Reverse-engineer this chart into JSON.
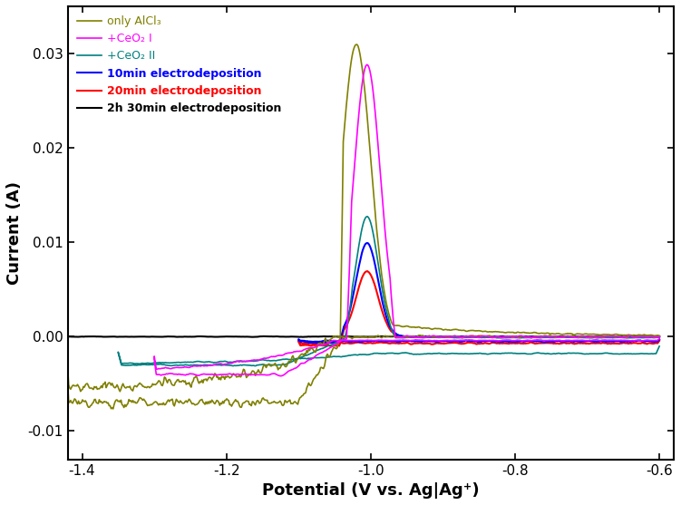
{
  "title": "",
  "xlabel": "Potential (V vs. Ag|Ag⁺)",
  "ylabel": "Current (A)",
  "xlim": [
    -1.42,
    -0.58
  ],
  "ylim": [
    -0.013,
    0.035
  ],
  "xticks": [
    -1.4,
    -1.2,
    -1.0,
    -0.8,
    -0.6
  ],
  "yticks": [
    -0.01,
    0.0,
    0.01,
    0.02,
    0.03
  ],
  "background_color": "#ffffff",
  "series": [
    {
      "label": "only AlCl₃",
      "color": "#808000",
      "lw": 1.2
    },
    {
      "label": "+CeO₂ I",
      "color": "#ff00ff",
      "lw": 1.2
    },
    {
      "label": "+CeO₂ II",
      "color": "#008080",
      "lw": 1.2
    },
    {
      "label": "10min electrodeposition",
      "color": "#0000ff",
      "lw": 1.5
    },
    {
      "label": "20min electrodeposition",
      "color": "#ff0000",
      "lw": 1.5
    },
    {
      "label": "2h 30min electrodeposition",
      "color": "#000000",
      "lw": 1.5
    }
  ]
}
